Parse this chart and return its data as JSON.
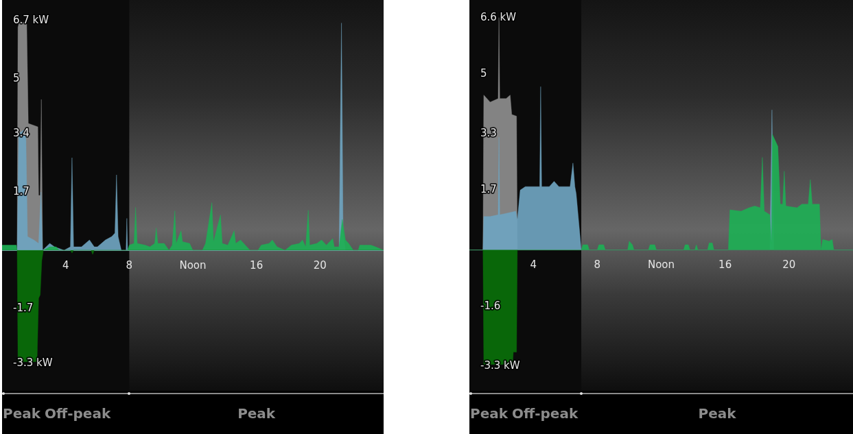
{
  "chart_data": [
    {
      "type": "area",
      "xlim": [
        0,
        24
      ],
      "xticks": [
        4,
        8,
        {
          "value": 12,
          "label": "Noon"
        },
        16,
        20
      ],
      "ylim": [
        -4.1,
        7.3
      ],
      "yticks": [
        {
          "value": 6.7,
          "label": "6.7 kW"
        },
        5,
        3.4,
        1.7,
        -1.7,
        {
          "value": -3.3,
          "label": "-3.3 kW"
        }
      ],
      "grid": false,
      "legend": false,
      "marker": "none",
      "bands": [
        {
          "axis": "x",
          "from": 0,
          "to": 8,
          "color": "#0b0b0b"
        }
      ],
      "annotations": [
        "Peak",
        "Off-peak",
        "Peak"
      ],
      "series": [
        {
          "color": "#8c8c8c",
          "x": [
            0,
            0.95,
            1.0,
            1.1,
            1.55,
            1.65,
            2.25,
            2.3,
            2.4,
            2.47,
            2.55,
            24
          ],
          "values": [
            0,
            0,
            6.5,
            6.7,
            6.6,
            3.7,
            3.6,
            1.6,
            1.6,
            4.4,
            0,
            0
          ]
        },
        {
          "color": "#6ea3bf",
          "x": [
            0,
            0.95,
            1.05,
            1.35,
            1.5,
            1.6,
            2.0,
            2.3,
            2.45,
            2.55,
            3.0,
            3.3,
            3.9,
            4.3,
            4.4,
            4.5,
            5.0,
            5.5,
            5.8,
            6.0,
            6.5,
            6.9,
            7.1,
            7.2,
            7.3,
            7.5,
            7.8,
            7.85,
            7.9,
            8.0,
            21.2,
            21.35,
            21.45,
            21.6,
            24
          ],
          "values": [
            0,
            0,
            3.4,
            3.5,
            3.3,
            0.4,
            0.3,
            0.2,
            1.7,
            0,
            0.2,
            0.1,
            0,
            0.1,
            2.7,
            0.1,
            0.1,
            0.3,
            0.1,
            0.1,
            0.3,
            0.4,
            0.5,
            2.2,
            0.4,
            0,
            0,
            0.93,
            0,
            0,
            0,
            6.63,
            0.5,
            0,
            0
          ]
        },
        {
          "color": "#1fae55",
          "x": [
            0,
            0.9,
            0.95,
            2.6,
            3.0,
            3.4,
            3.6,
            7.9,
            8.0,
            8.3,
            8.4,
            8.5,
            9.0,
            9.3,
            9.6,
            9.7,
            9.8,
            10.2,
            10.5,
            10.7,
            10.87,
            10.95,
            11.26,
            11.35,
            11.8,
            12.0,
            12.6,
            12.8,
            13.2,
            13.3,
            13.74,
            13.85,
            14.2,
            14.6,
            14.7,
            15.0,
            15.4,
            15.6,
            16.1,
            16.3,
            16.8,
            17.0,
            17.3,
            17.8,
            18.2,
            18.7,
            18.9,
            19.1,
            19.26,
            19.35,
            19.8,
            20.1,
            20.4,
            20.8,
            20.9,
            21.2,
            21.4,
            21.6,
            21.8,
            22.1,
            22.4,
            22.5,
            23.2,
            23.5,
            24
          ],
          "values": [
            0.15,
            0.15,
            0,
            0,
            0.1,
            0.1,
            0,
            0,
            0.15,
            0.2,
            1.25,
            0.2,
            0.15,
            0.1,
            0.2,
            0.65,
            0.2,
            0.2,
            0,
            0.15,
            1.15,
            0.2,
            0.57,
            0.25,
            0.2,
            0,
            0,
            0.2,
            1.39,
            0.25,
            1.03,
            0.2,
            0.15,
            0.57,
            0.2,
            0.3,
            0.1,
            0,
            0,
            0.15,
            0.2,
            0.3,
            0.1,
            0,
            0.15,
            0.2,
            0.3,
            0.1,
            1.17,
            0.15,
            0.2,
            0.3,
            0.15,
            0.34,
            0.1,
            0.1,
            0.9,
            0.3,
            0.2,
            0,
            0,
            0.15,
            0.15,
            0.1,
            0
          ]
        },
        {
          "color": "#0a6e0a",
          "x": [
            0,
            0.95,
            1.0,
            2.2,
            2.3,
            2.4,
            2.5,
            2.6,
            4.3,
            4.4,
            4.5,
            5.6,
            5.7,
            5.8,
            24
          ],
          "values": [
            0,
            0,
            -3.25,
            -3.25,
            -1.4,
            -1.3,
            -0.3,
            0,
            0,
            -0.08,
            0,
            0,
            -0.12,
            0,
            0
          ]
        }
      ]
    },
    {
      "type": "area",
      "xlim": [
        0,
        24
      ],
      "xticks": [
        4,
        8,
        {
          "value": 12,
          "label": "Noon"
        },
        16,
        20
      ],
      "ylim": [
        -4,
        7.1
      ],
      "yticks": [
        {
          "value": 6.6,
          "label": "6.6 kW"
        },
        5,
        3.3,
        1.7,
        -1.6,
        {
          "value": -3.3,
          "label": "-3.3 kW"
        }
      ],
      "grid": false,
      "legend": false,
      "marker": "none",
      "bands": [
        {
          "axis": "x",
          "from": 0,
          "to": 7,
          "color": "#0b0b0b"
        }
      ],
      "annotations": [
        "Peak",
        "Off-peak",
        "Peak"
      ],
      "series": [
        {
          "color": "#8c8c8c",
          "x": [
            0,
            0.85,
            0.9,
            1.3,
            1.8,
            1.85,
            1.9,
            2.3,
            2.55,
            2.65,
            2.95,
            3.0,
            24
          ],
          "values": [
            0,
            0,
            4.4,
            4.2,
            4.3,
            6.6,
            4.3,
            4.3,
            4.4,
            3.85,
            3.8,
            0,
            0
          ]
        },
        {
          "color": "#6ea3bf",
          "x": [
            0,
            0.85,
            0.9,
            1.3,
            1.8,
            1.85,
            1.9,
            2.4,
            2.9,
            3.0,
            3.18,
            3.5,
            4.4,
            4.46,
            4.52,
            5.0,
            5.3,
            5.6,
            6.3,
            6.48,
            6.6,
            6.68,
            7.0,
            18.8,
            18.93,
            19.05,
            24
          ],
          "values": [
            0,
            0,
            0.95,
            0.95,
            1.0,
            3.2,
            1.0,
            1.05,
            1.1,
            0.85,
            1.7,
            1.8,
            1.8,
            4.64,
            1.8,
            1.8,
            1.95,
            1.8,
            1.8,
            2.47,
            1.8,
            1.6,
            0,
            0,
            3.98,
            0,
            0
          ]
        },
        {
          "color": "#1fae55",
          "x": [
            0,
            7.0,
            7.1,
            7.4,
            7.5,
            8.0,
            8.1,
            8.4,
            8.5,
            9.9,
            10.0,
            10.2,
            10.3,
            11.2,
            11.3,
            11.6,
            11.7,
            13.4,
            13.5,
            13.7,
            13.8,
            14.1,
            14.2,
            14.3,
            14.9,
            15.0,
            15.2,
            15.3,
            16.2,
            16.3,
            17.0,
            17.5,
            17.85,
            18.2,
            18.33,
            18.45,
            18.8,
            18.9,
            18.95,
            19.3,
            19.45,
            19.6,
            19.7,
            19.8,
            20.5,
            20.8,
            21.2,
            21.33,
            21.45,
            21.9,
            22.0,
            22.1,
            22.5,
            22.7,
            22.8,
            24
          ],
          "values": [
            0,
            0,
            0.15,
            0.15,
            0,
            0,
            0.15,
            0.15,
            0,
            0,
            0.25,
            0.15,
            0,
            0,
            0.15,
            0.15,
            0,
            0,
            0.15,
            0.15,
            0,
            0,
            0.15,
            0,
            0,
            0.2,
            0.2,
            0,
            0,
            1.14,
            1.1,
            1.2,
            1.25,
            1.2,
            2.63,
            1.1,
            1.0,
            0.2,
            3.29,
            2.94,
            1.3,
            1.3,
            2.24,
            1.25,
            1.2,
            1.3,
            1.3,
            2.0,
            1.3,
            1.3,
            0,
            0.3,
            0.25,
            0.3,
            0,
            0
          ]
        },
        {
          "color": "#0a6e0a",
          "x": [
            0,
            0.85,
            0.9,
            2.7,
            2.75,
            2.95,
            3.0,
            24
          ],
          "values": [
            0,
            0,
            -3.25,
            -3.25,
            -2.9,
            -2.9,
            0,
            0
          ]
        }
      ]
    }
  ]
}
